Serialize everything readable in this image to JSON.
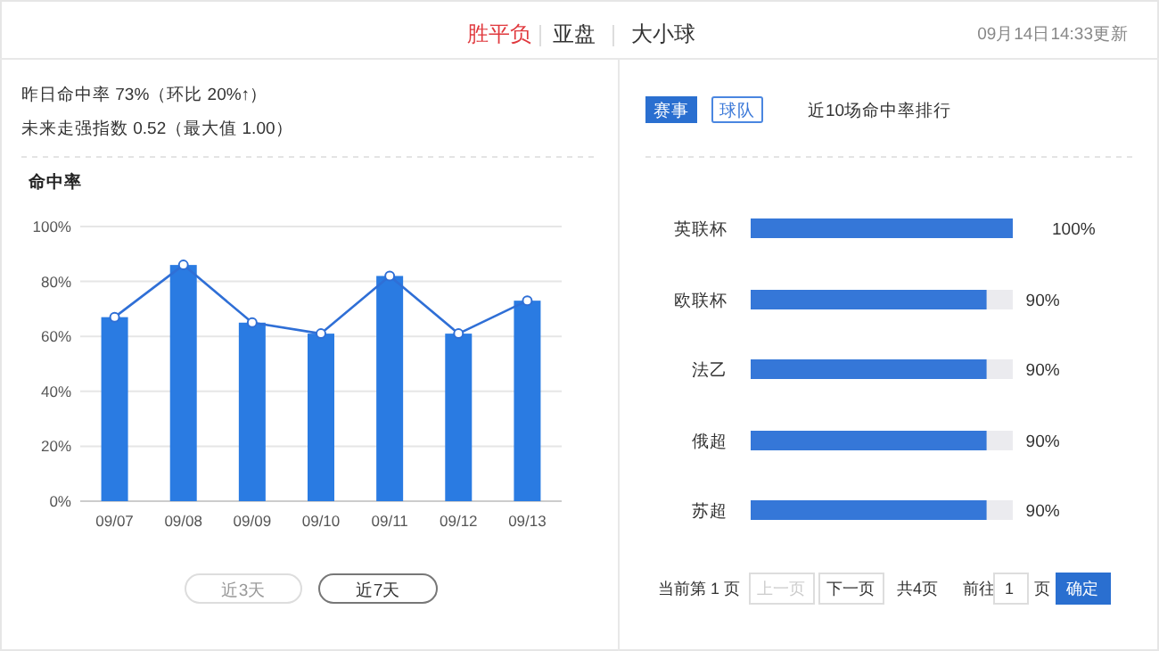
{
  "chart_data": [
    {
      "type": "other",
      "title": "胜平负",
      "annotations": [
        "亚盘",
        "大小球",
        "09月14日14:33更新"
      ]
    },
    {
      "type": "bar",
      "title": "命中率",
      "subtitle": "昨日命中率 73%（环比 20%↑）",
      "annotations": [
        "未来走强指数 0.52（最大值 1.00）",
        "近3天",
        "近7天"
      ],
      "categories": [
        "09/07",
        "09/08",
        "09/09",
        "09/10",
        "09/11",
        "09/12",
        "09/13"
      ],
      "series": [
        {
          "type": "bar",
          "color": "#2a7be2",
          "values": [
            67,
            86,
            65,
            61,
            82,
            61,
            73
          ]
        },
        {
          "type": "line",
          "color": "#2f6fd6",
          "marker": "circle",
          "values": [
            67,
            86,
            65,
            61,
            82,
            61,
            73
          ]
        }
      ],
      "ylim": [
        0,
        100
      ],
      "yticks": [
        {
          "value": 0,
          "label": "0%"
        },
        {
          "value": 20,
          "label": "20%"
        },
        {
          "value": 40,
          "label": "40%"
        },
        {
          "value": 60,
          "label": "60%"
        },
        {
          "value": 80,
          "label": "80%"
        },
        {
          "value": 100,
          "label": "100%"
        }
      ],
      "grid": "y"
    },
    {
      "type": "bar",
      "orientation": "horizontal",
      "title": "近10场命中率排行",
      "annotations": [
        "赛事",
        "球队",
        "当前第 1 页",
        "上一页",
        "下一页",
        "共4页",
        "前往",
        "1",
        "页",
        "确定"
      ],
      "categories": [
        "英联杯",
        "欧联杯",
        "法乙",
        "俄超",
        "苏超"
      ],
      "values": [
        100,
        90,
        90,
        90,
        90
      ],
      "value_labels": [
        "100%",
        "90%",
        "90%",
        "90%",
        "90%"
      ],
      "color": "#3577d8",
      "xlim": [
        0,
        100
      ],
      "tick_labels": "y"
    }
  ]
}
